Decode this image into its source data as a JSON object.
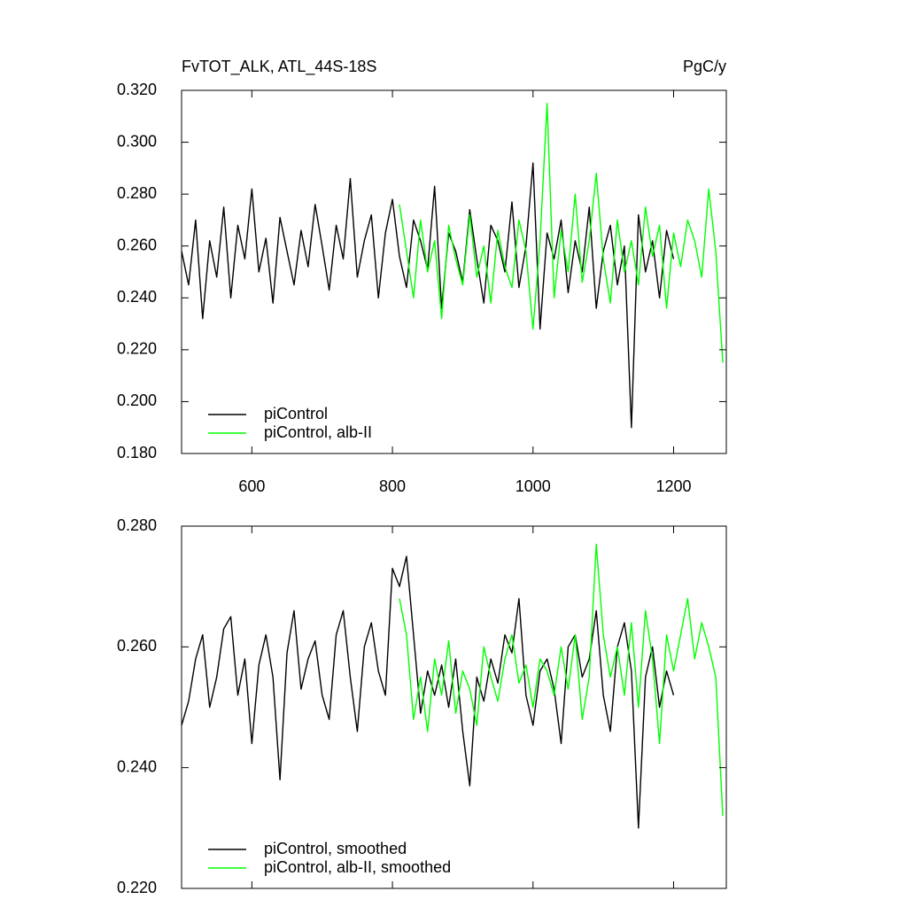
{
  "chart_data": [
    {
      "type": "line",
      "title": "FvTOT_ALK, ATL_44S-18S",
      "units": "PgC/y",
      "xlim": [
        500,
        1275
      ],
      "xticks": [
        600,
        800,
        1000,
        1200
      ],
      "show_xtick_labels": true,
      "ylim": [
        0.18,
        0.32
      ],
      "yticks": [
        {
          "value": 0.18,
          "label": "0.180"
        },
        {
          "value": 0.2,
          "label": "0.200"
        },
        {
          "value": 0.22,
          "label": "0.220"
        },
        {
          "value": 0.24,
          "label": "0.240"
        },
        {
          "value": 0.26,
          "label": "0.260"
        },
        {
          "value": 0.28,
          "label": "0.280"
        },
        {
          "value": 0.3,
          "label": "0.300"
        },
        {
          "value": 0.32,
          "label": "0.320"
        }
      ],
      "legend": "lower left",
      "series": [
        {
          "name": "piControl",
          "color": "#000000",
          "x": [
            500,
            510,
            520,
            530,
            540,
            550,
            560,
            570,
            580,
            590,
            600,
            610,
            620,
            630,
            640,
            650,
            660,
            670,
            680,
            690,
            700,
            710,
            720,
            730,
            740,
            750,
            760,
            770,
            780,
            790,
            800,
            810,
            820,
            830,
            840,
            850,
            860,
            870,
            880,
            890,
            900,
            910,
            920,
            930,
            940,
            950,
            960,
            970,
            980,
            990,
            1000,
            1010,
            1020,
            1030,
            1040,
            1050,
            1060,
            1070,
            1080,
            1090,
            1100,
            1110,
            1120,
            1130,
            1140,
            1150,
            1160,
            1170,
            1180,
            1190,
            1200
          ],
          "values": [
            0.258,
            0.245,
            0.27,
            0.232,
            0.262,
            0.248,
            0.275,
            0.24,
            0.268,
            0.255,
            0.282,
            0.25,
            0.263,
            0.238,
            0.271,
            0.258,
            0.245,
            0.266,
            0.252,
            0.276,
            0.26,
            0.243,
            0.268,
            0.255,
            0.286,
            0.248,
            0.262,
            0.272,
            0.24,
            0.265,
            0.278,
            0.256,
            0.244,
            0.27,
            0.262,
            0.251,
            0.283,
            0.236,
            0.265,
            0.258,
            0.246,
            0.274,
            0.255,
            0.238,
            0.268,
            0.262,
            0.25,
            0.277,
            0.244,
            0.26,
            0.292,
            0.228,
            0.265,
            0.255,
            0.27,
            0.242,
            0.262,
            0.25,
            0.275,
            0.236,
            0.258,
            0.268,
            0.245,
            0.26,
            0.19,
            0.272,
            0.25,
            0.262,
            0.24,
            0.266,
            0.255
          ]
        },
        {
          "name": "piControl, alb-II",
          "color": "#00ff00",
          "x": [
            810,
            820,
            830,
            840,
            850,
            860,
            870,
            880,
            890,
            900,
            910,
            920,
            930,
            940,
            950,
            960,
            970,
            980,
            990,
            1000,
            1010,
            1020,
            1030,
            1040,
            1050,
            1060,
            1070,
            1080,
            1090,
            1100,
            1110,
            1120,
            1130,
            1140,
            1150,
            1160,
            1170,
            1180,
            1190,
            1200,
            1210,
            1220,
            1230,
            1240,
            1250,
            1260,
            1270
          ],
          "values": [
            0.276,
            0.258,
            0.24,
            0.27,
            0.25,
            0.262,
            0.232,
            0.268,
            0.255,
            0.245,
            0.272,
            0.248,
            0.26,
            0.238,
            0.266,
            0.252,
            0.244,
            0.27,
            0.258,
            0.228,
            0.262,
            0.315,
            0.24,
            0.266,
            0.25,
            0.28,
            0.246,
            0.262,
            0.288,
            0.255,
            0.238,
            0.27,
            0.25,
            0.262,
            0.245,
            0.275,
            0.256,
            0.268,
            0.236,
            0.265,
            0.252,
            0.27,
            0.262,
            0.248,
            0.282,
            0.258,
            0.215
          ]
        }
      ]
    },
    {
      "type": "line",
      "xlim": [
        500,
        1275
      ],
      "xticks": [
        600,
        800,
        1000,
        1200
      ],
      "show_xtick_labels": false,
      "ylim": [
        0.22,
        0.28
      ],
      "yticks": [
        {
          "value": 0.22,
          "label": "0.220"
        },
        {
          "value": 0.24,
          "label": "0.240"
        },
        {
          "value": 0.26,
          "label": "0.260"
        },
        {
          "value": 0.28,
          "label": "0.280"
        }
      ],
      "legend": "lower left",
      "series": [
        {
          "name": "piControl, smoothed",
          "color": "#000000",
          "x": [
            500,
            510,
            520,
            530,
            540,
            550,
            560,
            570,
            580,
            590,
            600,
            610,
            620,
            630,
            640,
            650,
            660,
            670,
            680,
            690,
            700,
            710,
            720,
            730,
            740,
            750,
            760,
            770,
            780,
            790,
            800,
            810,
            820,
            830,
            840,
            850,
            860,
            870,
            880,
            890,
            900,
            910,
            920,
            930,
            940,
            950,
            960,
            970,
            980,
            990,
            1000,
            1010,
            1020,
            1030,
            1040,
            1050,
            1060,
            1070,
            1080,
            1090,
            1100,
            1110,
            1120,
            1130,
            1140,
            1150,
            1160,
            1170,
            1180,
            1190,
            1200
          ],
          "values": [
            0.247,
            0.251,
            0.258,
            0.262,
            0.25,
            0.255,
            0.263,
            0.265,
            0.252,
            0.258,
            0.244,
            0.257,
            0.262,
            0.255,
            0.238,
            0.259,
            0.266,
            0.253,
            0.258,
            0.261,
            0.252,
            0.248,
            0.262,
            0.266,
            0.255,
            0.246,
            0.26,
            0.264,
            0.256,
            0.252,
            0.273,
            0.27,
            0.275,
            0.262,
            0.249,
            0.256,
            0.252,
            0.257,
            0.25,
            0.258,
            0.246,
            0.237,
            0.255,
            0.251,
            0.258,
            0.254,
            0.262,
            0.259,
            0.268,
            0.252,
            0.247,
            0.256,
            0.258,
            0.253,
            0.244,
            0.26,
            0.262,
            0.255,
            0.258,
            0.266,
            0.252,
            0.246,
            0.26,
            0.264,
            0.256,
            0.23,
            0.255,
            0.26,
            0.25,
            0.256,
            0.252
          ]
        },
        {
          "name": "piControl, alb-II, smoothed",
          "color": "#00ff00",
          "x": [
            810,
            820,
            830,
            840,
            850,
            860,
            870,
            880,
            890,
            900,
            910,
            920,
            930,
            940,
            950,
            960,
            970,
            980,
            990,
            1000,
            1010,
            1020,
            1030,
            1040,
            1050,
            1060,
            1070,
            1080,
            1090,
            1100,
            1110,
            1120,
            1130,
            1140,
            1150,
            1160,
            1170,
            1180,
            1190,
            1200,
            1210,
            1220,
            1230,
            1240,
            1250,
            1260,
            1270
          ],
          "values": [
            0.268,
            0.262,
            0.248,
            0.255,
            0.246,
            0.258,
            0.252,
            0.261,
            0.249,
            0.256,
            0.253,
            0.247,
            0.26,
            0.255,
            0.251,
            0.258,
            0.262,
            0.254,
            0.257,
            0.25,
            0.258,
            0.256,
            0.252,
            0.26,
            0.253,
            0.262,
            0.248,
            0.255,
            0.277,
            0.262,
            0.255,
            0.26,
            0.252,
            0.264,
            0.25,
            0.266,
            0.258,
            0.244,
            0.262,
            0.256,
            0.262,
            0.268,
            0.258,
            0.264,
            0.26,
            0.255,
            0.232
          ]
        }
      ]
    }
  ]
}
